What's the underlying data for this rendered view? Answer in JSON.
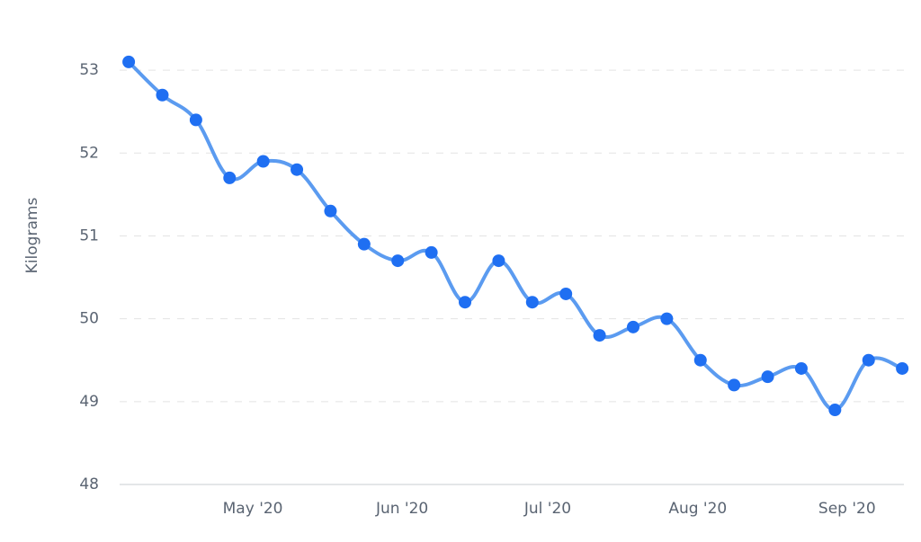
{
  "chart_data": {
    "type": "line",
    "ylabel": "Kilograms",
    "values": [
      53.1,
      52.7,
      52.4,
      51.7,
      51.9,
      51.8,
      51.3,
      50.9,
      50.7,
      50.8,
      50.2,
      50.7,
      50.2,
      50.3,
      49.8,
      49.9,
      50.0,
      49.5,
      49.2,
      49.3,
      49.4,
      48.9,
      49.5,
      49.4
    ],
    "color": "#5b9bf0",
    "marker_color": "#1f6ff2",
    "xlim": [
      -0.27,
      23.05
    ],
    "xticks": [
      {
        "value": 3.69,
        "label": "May '20"
      },
      {
        "value": 8.13,
        "label": "Jun '20"
      },
      {
        "value": 12.46,
        "label": "Jul '20"
      },
      {
        "value": 16.92,
        "label": "Aug '20"
      },
      {
        "value": 21.36,
        "label": "Sep '20"
      }
    ],
    "ylim": [
      48,
      53.5
    ],
    "yticks": [
      48,
      49,
      50,
      51,
      52,
      53
    ],
    "grid": true
  }
}
